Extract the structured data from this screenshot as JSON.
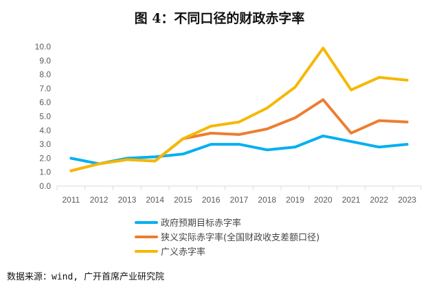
{
  "chart_data": {
    "type": "line",
    "title": "图 4：不同口径的财政赤字率",
    "xlabel": "",
    "ylabel": "",
    "categories": [
      "2011",
      "2012",
      "2013",
      "2014",
      "2015",
      "2016",
      "2017",
      "2018",
      "2019",
      "2020",
      "2021",
      "2022",
      "2023"
    ],
    "ylim": [
      0,
      10
    ],
    "yticks": [
      "0.0",
      "1.0",
      "2.0",
      "3.0",
      "4.0",
      "5.0",
      "6.0",
      "7.0",
      "8.0",
      "9.0",
      "10.0"
    ],
    "grid": false,
    "legend_position": "bottom",
    "series": [
      {
        "name": "政府预期目标赤字率",
        "color": "#00b0f0",
        "values": [
          2.0,
          1.6,
          2.0,
          2.1,
          2.3,
          3.0,
          3.0,
          2.6,
          2.8,
          3.6,
          3.2,
          2.8,
          3.0
        ]
      },
      {
        "name": "狭义实际赤字率(全国财政收支差额口径)",
        "color": "#ed7d31",
        "values": [
          1.1,
          1.6,
          1.9,
          1.8,
          3.4,
          3.8,
          3.7,
          4.1,
          4.9,
          6.2,
          3.8,
          4.7,
          4.6
        ]
      },
      {
        "name": "广义赤字率",
        "color": "#f5b800",
        "values": [
          1.1,
          1.6,
          1.9,
          1.8,
          3.4,
          4.3,
          4.6,
          5.6,
          7.1,
          9.9,
          6.9,
          7.8,
          7.6
        ]
      }
    ]
  },
  "source": "数据来源：wind, 广开首席产业研究院"
}
